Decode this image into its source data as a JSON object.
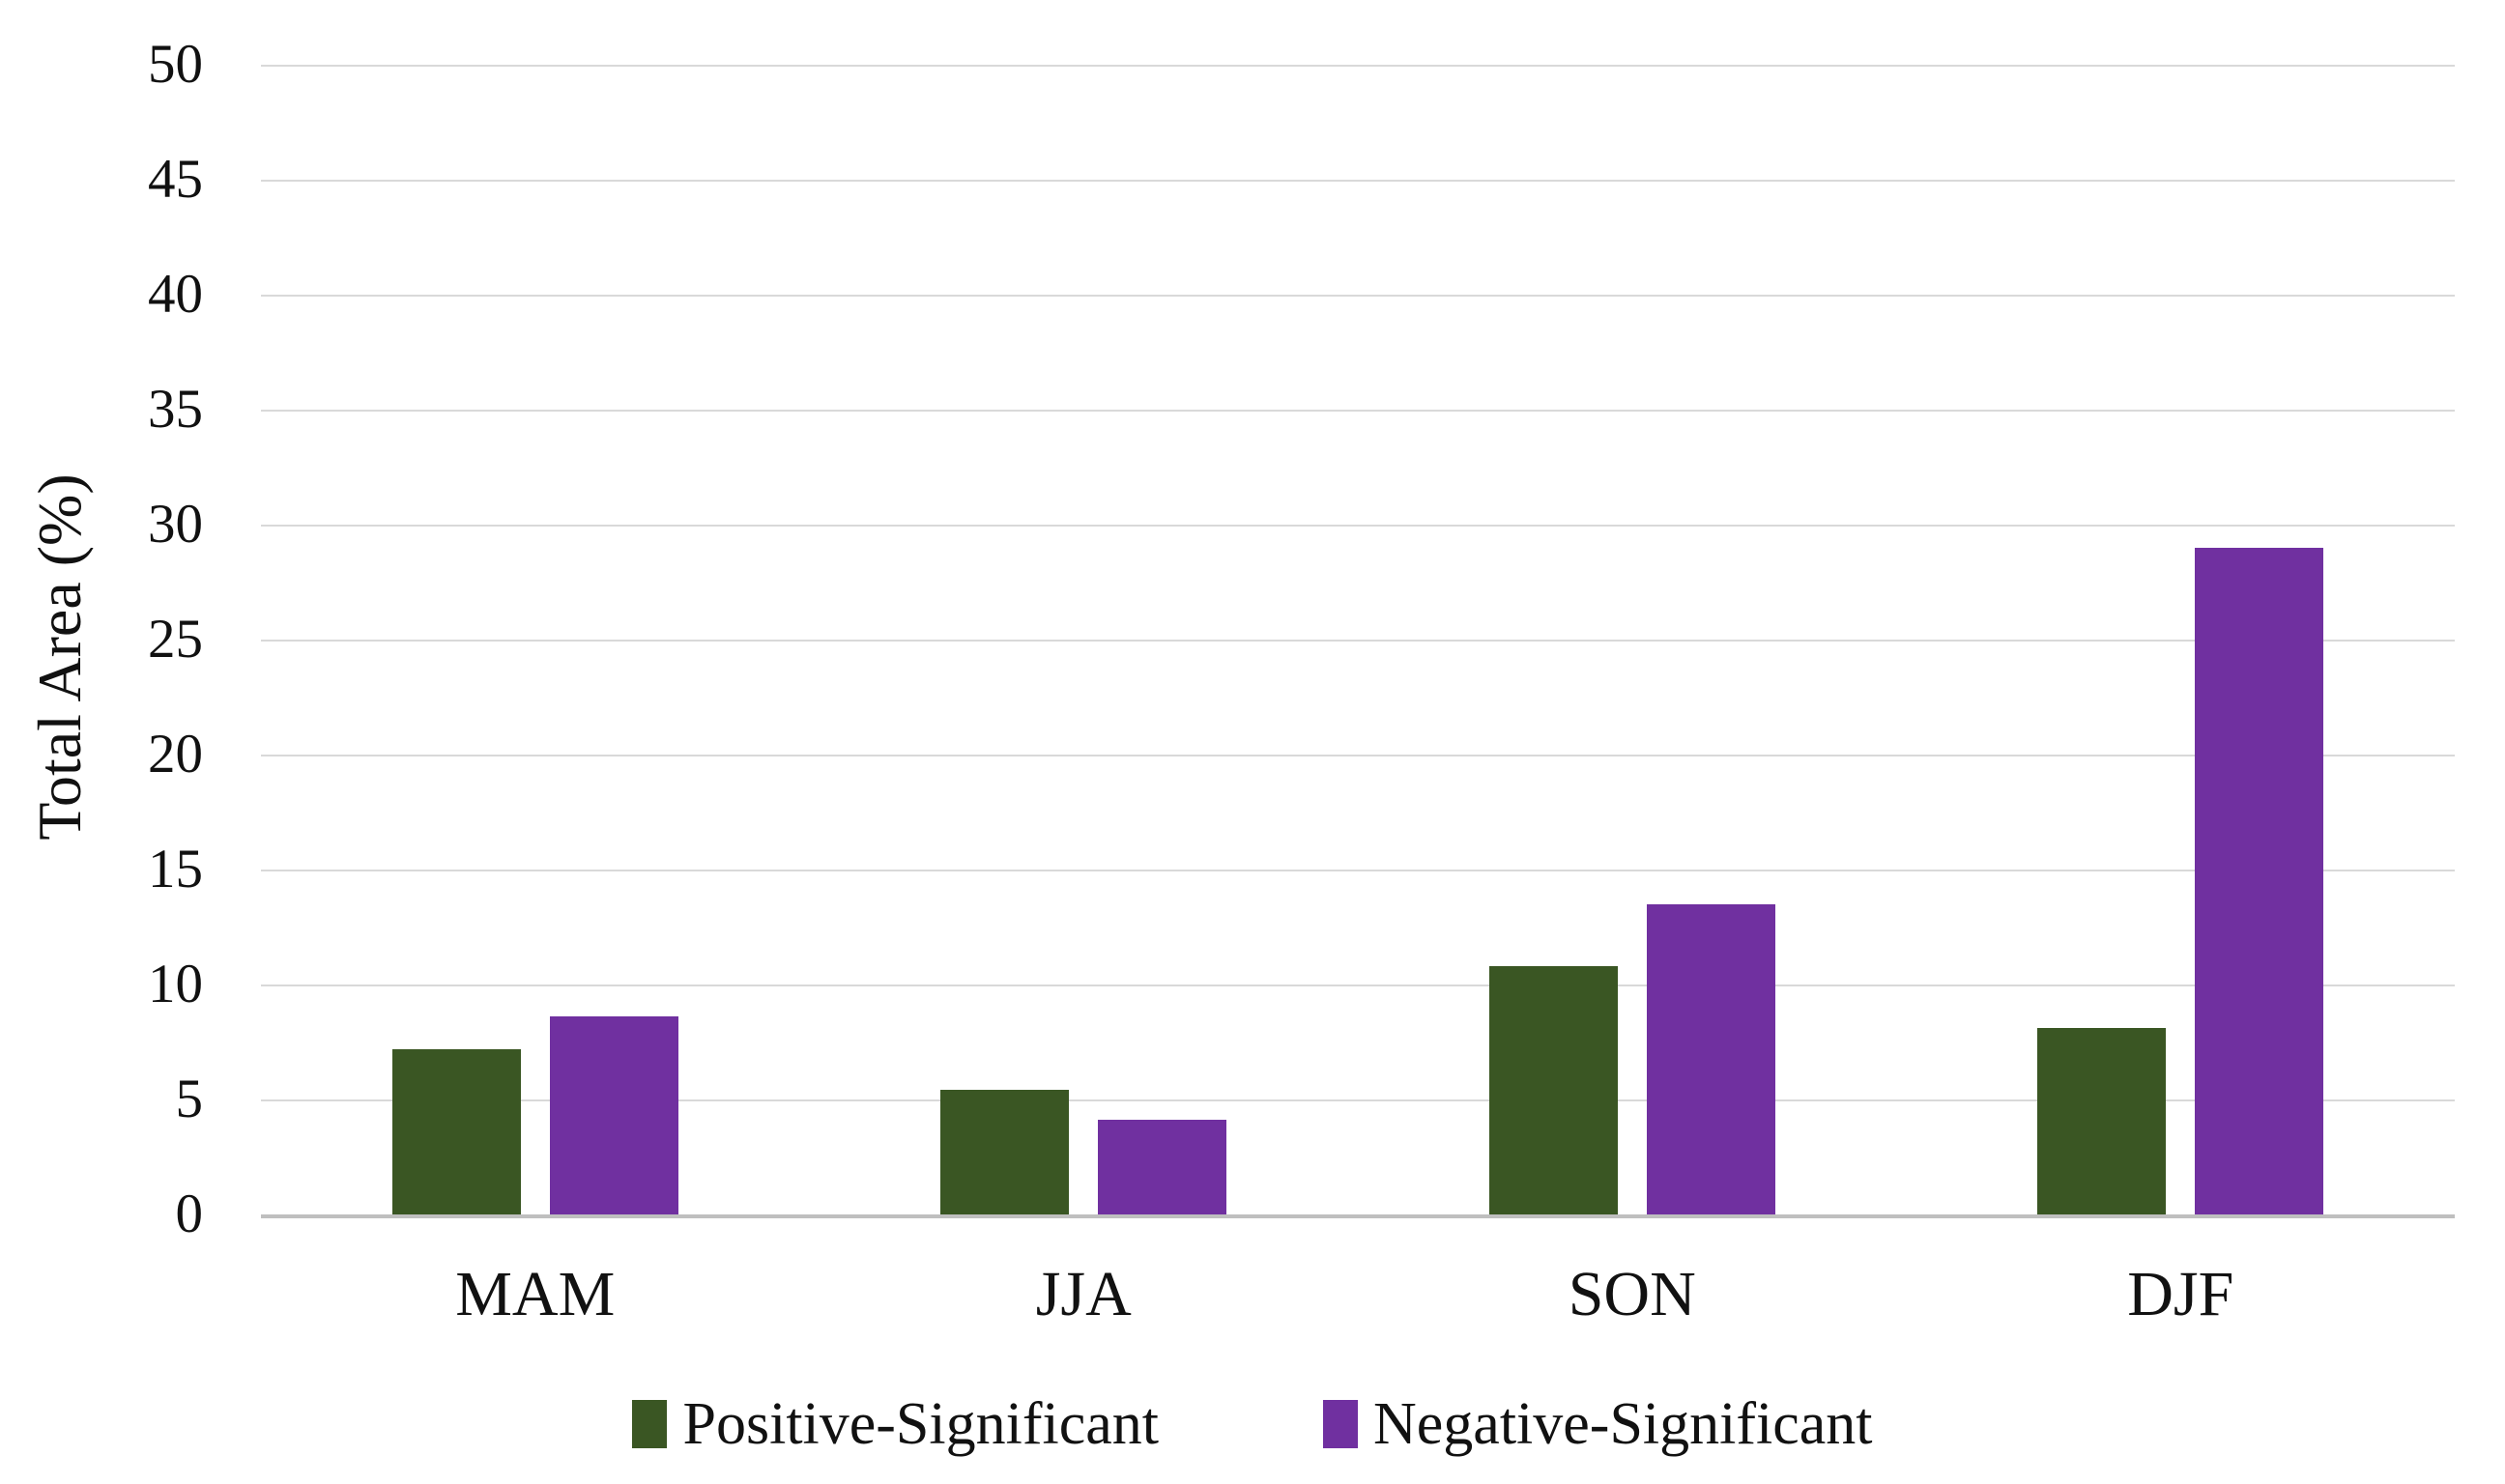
{
  "chart_data": {
    "type": "bar",
    "title": "",
    "xlabel": "",
    "ylabel": "Total Area (%)",
    "categories": [
      "MAM",
      "JJA",
      "SON",
      "DJF"
    ],
    "series": [
      {
        "name": "Positive-Significant",
        "color": "#3A5623",
        "values": [
          7.2,
          5.4,
          10.8,
          8.1
        ]
      },
      {
        "name": "Negative-Significant",
        "color": "#7030A0",
        "values": [
          8.6,
          4.1,
          13.5,
          29.0
        ]
      }
    ],
    "ylim": [
      0,
      50
    ],
    "yticks": [
      0,
      5,
      10,
      15,
      20,
      25,
      30,
      35,
      40,
      45,
      50
    ],
    "grid": true,
    "legend_position": "bottom"
  },
  "colors": {
    "gridline": "#D9D9D9",
    "baseline": "#BFBFBF",
    "text": "#111111",
    "background": "#FFFFFF"
  }
}
